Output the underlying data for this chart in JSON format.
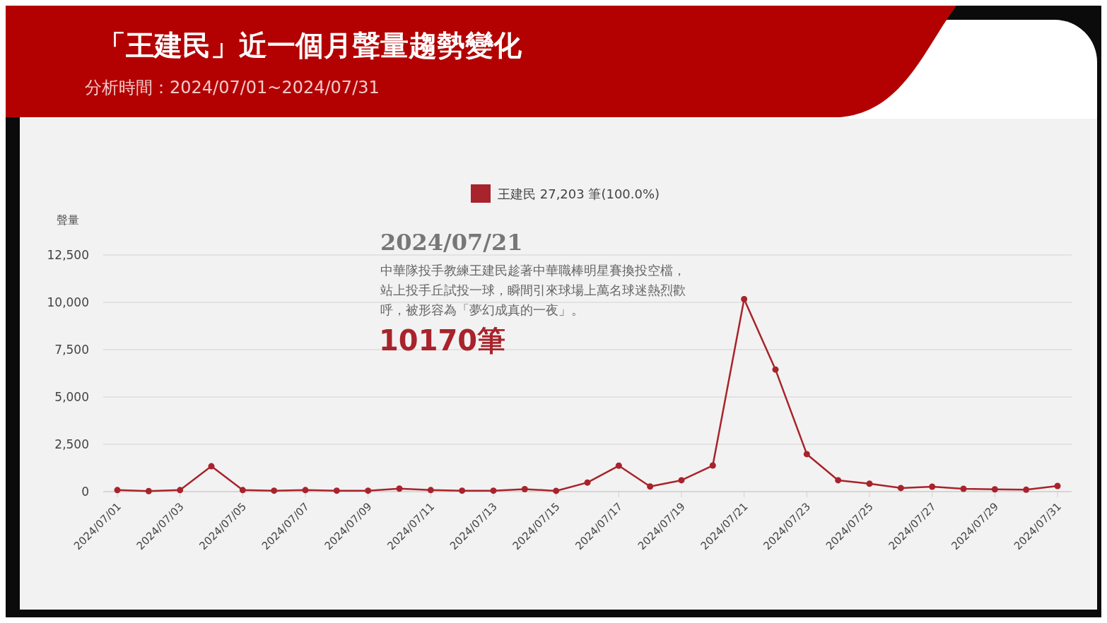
{
  "chart_data": {
    "type": "line",
    "title": "「王建民」近一個月聲量趨勢變化",
    "subtitle": "分析時間：2024/07/01~2024/07/31",
    "ylabel": "聲量",
    "categories": [
      "2024/07/01",
      null,
      "2024/07/03",
      null,
      "2024/07/05",
      null,
      "2024/07/07",
      null,
      "2024/07/09",
      null,
      "2024/07/11",
      null,
      "2024/07/13",
      null,
      "2024/07/15",
      null,
      "2024/07/17",
      null,
      "2024/07/19",
      null,
      "2024/07/21",
      null,
      "2024/07/23",
      null,
      "2024/07/25",
      null,
      "2024/07/27",
      null,
      "2024/07/29",
      null,
      "2024/07/31"
    ],
    "series": [
      {
        "name": "王建民 27,203 筆(100.0%)",
        "color": "#a8232b",
        "values": [
          80,
          30,
          80,
          1340,
          80,
          50,
          80,
          50,
          50,
          160,
          80,
          50,
          50,
          130,
          40,
          480,
          1370,
          270,
          600,
          1380,
          10170,
          6450,
          1980,
          600,
          420,
          190,
          260,
          150,
          120,
          100,
          300
        ]
      }
    ],
    "ylim": [
      0,
      12500
    ],
    "yticks": [
      0,
      {
        "value": 2500,
        "label": "2,500"
      },
      {
        "value": 5000,
        "label": "5,000"
      },
      {
        "value": 7500,
        "label": "7,500"
      },
      {
        "value": 10000,
        "label": "10,000"
      },
      {
        "value": 12500,
        "label": "12,500"
      }
    ],
    "grid": "y",
    "legend": "top",
    "marker": "circle",
    "line_style": "solid",
    "annotations": [
      "2024/07/21",
      "中華隊投手教練王建民趁著中華職棒明星賽換投空檔，站上投手丘試投一球，瞬間引來球場上萬名球迷熱烈歡呼，被形容為「夢幻成真的一夜」。",
      "10170筆"
    ]
  }
}
